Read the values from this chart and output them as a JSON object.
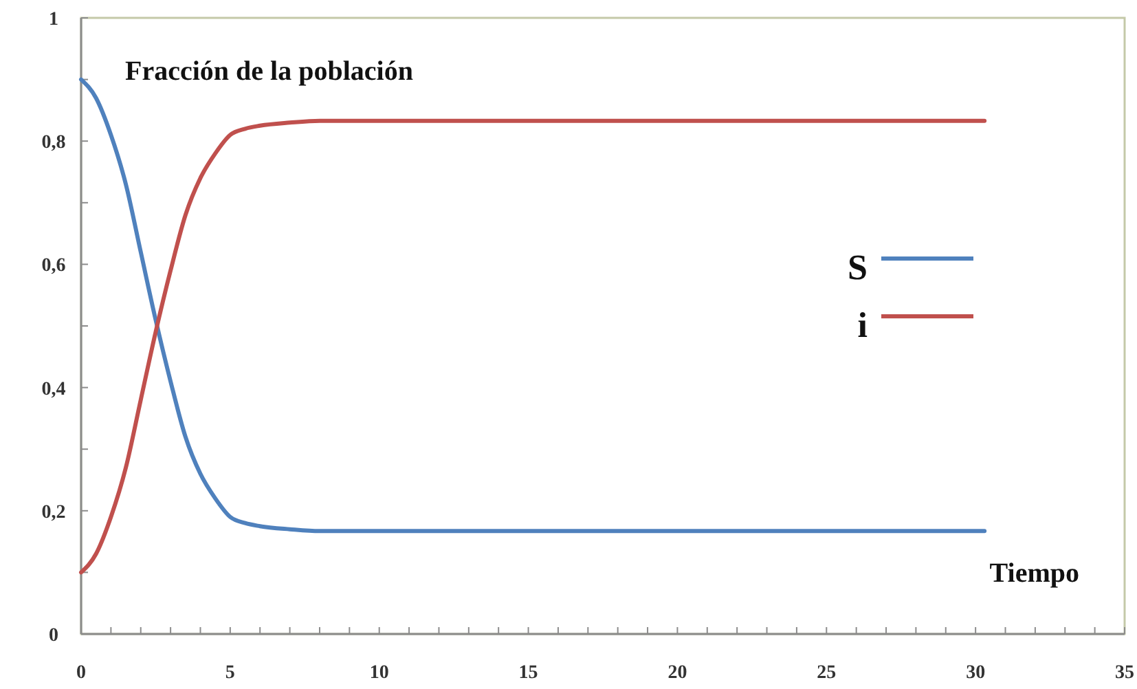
{
  "chart_data": {
    "type": "line",
    "xlabel": "Tiempo",
    "ylabel": "Fracción de la población",
    "x": [
      0,
      0.5,
      1,
      1.5,
      2,
      2.5,
      3,
      3.5,
      4,
      4.5,
      5,
      5.5,
      6,
      7,
      8,
      10,
      15,
      20,
      25,
      30.3
    ],
    "series": [
      {
        "name": "S",
        "color": "#4f81bd",
        "values": [
          0.9,
          0.87,
          0.81,
          0.73,
          0.62,
          0.51,
          0.41,
          0.32,
          0.26,
          0.22,
          0.19,
          0.18,
          0.175,
          0.17,
          0.167,
          0.167,
          0.167,
          0.167,
          0.167,
          0.167
        ]
      },
      {
        "name": "i",
        "color": "#c0504d",
        "values": [
          0.1,
          0.13,
          0.19,
          0.27,
          0.38,
          0.49,
          0.59,
          0.68,
          0.74,
          0.78,
          0.81,
          0.82,
          0.825,
          0.83,
          0.833,
          0.833,
          0.833,
          0.833,
          0.833,
          0.833
        ]
      }
    ],
    "xlim": [
      0,
      35
    ],
    "xticks": [
      0,
      {
        "value": 1,
        "label": null
      },
      {
        "value": 2,
        "label": null
      },
      {
        "value": 3,
        "label": null
      },
      {
        "value": 4,
        "label": null
      },
      5,
      {
        "value": 6,
        "label": null
      },
      {
        "value": 7,
        "label": null
      },
      {
        "value": 8,
        "label": null
      },
      {
        "value": 9,
        "label": null
      },
      10,
      {
        "value": 11,
        "label": null
      },
      {
        "value": 12,
        "label": null
      },
      {
        "value": 13,
        "label": null
      },
      {
        "value": 14,
        "label": null
      },
      15,
      {
        "value": 16,
        "label": null
      },
      {
        "value": 17,
        "label": null
      },
      {
        "value": 18,
        "label": null
      },
      {
        "value": 19,
        "label": null
      },
      20,
      {
        "value": 21,
        "label": null
      },
      {
        "value": 22,
        "label": null
      },
      {
        "value": 23,
        "label": null
      },
      {
        "value": 24,
        "label": null
      },
      25,
      {
        "value": 26,
        "label": null
      },
      {
        "value": 27,
        "label": null
      },
      {
        "value": 28,
        "label": null
      },
      {
        "value": 29,
        "label": null
      },
      30,
      {
        "value": 31,
        "label": null
      },
      {
        "value": 32,
        "label": null
      },
      {
        "value": 33,
        "label": null
      },
      {
        "value": 34,
        "label": null
      },
      35
    ],
    "ylim": [
      0,
      1
    ],
    "yticks": [
      0,
      {
        "value": 0.1,
        "label": null
      },
      {
        "value": 0.2,
        "label": "0,2"
      },
      {
        "value": 0.3,
        "label": null
      },
      {
        "value": 0.4,
        "label": "0,4"
      },
      {
        "value": 0.5,
        "label": null
      },
      {
        "value": 0.6,
        "label": "0,6"
      },
      {
        "value": 0.7,
        "label": null
      },
      {
        "value": 0.8,
        "label": "0,8"
      },
      {
        "value": 0.9,
        "label": null
      },
      1
    ],
    "grid": false,
    "legend": "right",
    "marker": "none",
    "line_style": "solid"
  }
}
